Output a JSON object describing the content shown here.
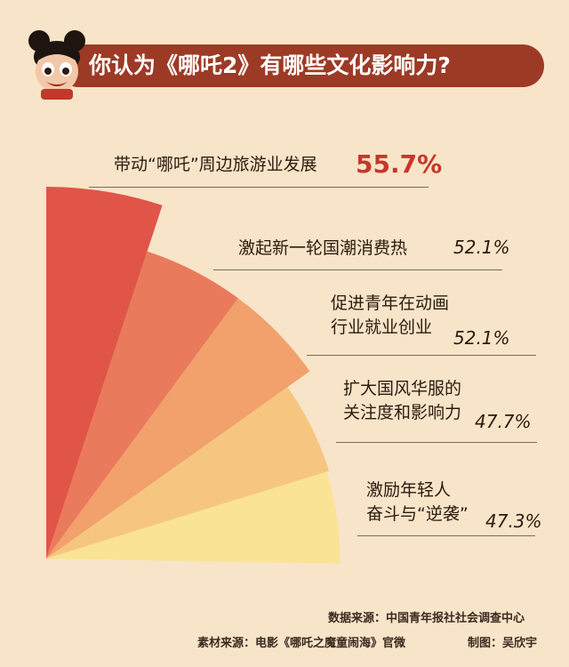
{
  "title": "你认为《哪吒2》有哪些文化影响力?",
  "chart_data": {
    "type": "pie",
    "title": "你认为《哪吒2》有哪些文化影响力?",
    "categories": [
      "带动“哪吒”周边旅游业发展",
      "激起新一轮国潮消费热",
      "促进青年在动画行业就业创业",
      "扩大国风华服的关注度和影响力",
      "激励年轻人奋斗与“逆袭”"
    ],
    "values": [
      55.7,
      52.1,
      52.1,
      47.7,
      47.3
    ],
    "unit": "%",
    "value_labels": [
      "55.7%",
      "52.1%",
      "52.1%",
      "47.7%",
      "47.3%"
    ],
    "label_lines": [
      [
        "带动“哪吒”周边旅游业发展"
      ],
      [
        "激起新一轮国潮消费热"
      ],
      [
        "促进青年在动画",
        "行业就业创业"
      ],
      [
        "扩大国风华服的",
        "关注度和影响力"
      ],
      [
        "激励年轻人",
        "奋斗与“逆袭”"
      ]
    ],
    "colors": [
      "#e05548",
      "#ea7a5c",
      "#f2a06c",
      "#f6c680",
      "#fae394"
    ]
  },
  "footer": {
    "data_source": "数据来源：中国青年报社社会调查中心",
    "material_source": "素材来源：电影《哪吒之魔童闹海》官微",
    "made_by": "制图：吴欣宇"
  }
}
